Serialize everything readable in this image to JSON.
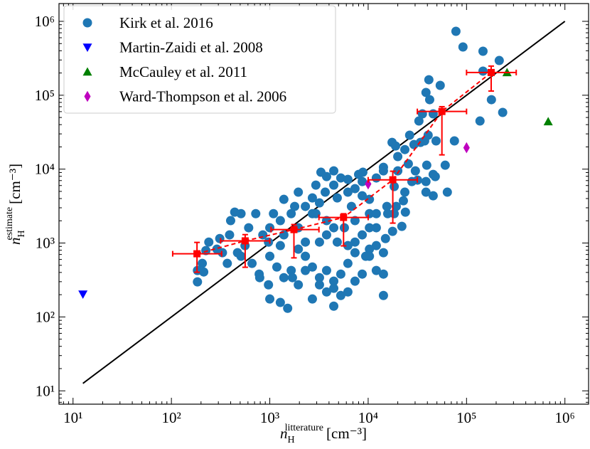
{
  "chart_data": {
    "type": "scatter",
    "xscale": "log",
    "yscale": "log",
    "xlim": [
      7.2,
      1740000
    ],
    "ylim": [
      6.6,
      1740000
    ],
    "xticks": [
      {
        "value": 10,
        "label": "10¹"
      },
      {
        "value": 100,
        "label": "10²"
      },
      {
        "value": 1000,
        "label": "10³"
      },
      {
        "value": 10000,
        "label": "10⁴"
      },
      {
        "value": 100000,
        "label": "10⁵"
      },
      {
        "value": 1000000,
        "label": "10⁶"
      }
    ],
    "yticks": [
      {
        "value": 10,
        "label": "10¹"
      },
      {
        "value": 100,
        "label": "10²"
      },
      {
        "value": 1000,
        "label": "10³"
      },
      {
        "value": 10000,
        "label": "10⁴"
      },
      {
        "value": 100000,
        "label": "10⁵"
      },
      {
        "value": 1000000,
        "label": "10⁶"
      }
    ],
    "xlabel": {
      "symbol": "n",
      "sub": "H",
      "sup": "litterature",
      "unit": "[cm⁻³]"
    },
    "ylabel": {
      "symbol": "n",
      "sub": "H",
      "sup": "estimate",
      "unit": "[cm⁻³]"
    },
    "legend": "upper left",
    "series": [
      {
        "name": "Kirk et al. 2016",
        "color": "#1f77b4",
        "marker": "o",
        "x": [
          78000,
          147000,
          215000,
          92000,
          147000,
          41400,
          137000,
          233000,
          179000,
          54000,
          38700,
          42200,
          45800,
          35600,
          40700,
          49000,
          32800,
          34000,
          29200,
          23600,
          20000,
          26400,
          20000,
          25600,
          30200,
          39400,
          45800,
          60700,
          48100,
          38700,
          45800,
          63800,
          27800,
          23600,
          22800,
          19300,
          15800,
          23900,
          22000,
          17700,
          15000,
          12100,
          12100,
          10300,
          10300,
          8700,
          8000,
          7350,
          8700,
          6760,
          6220,
          5270,
          4470,
          4850,
          3780,
          3660,
          3200,
          2710,
          2710,
          2300,
          1950,
          1790,
          1650,
          1390,
          1280,
          1090,
          1000,
          850,
          720,
          610,
          510,
          440,
          400,
          390,
          310,
          290,
          240,
          206,
          184,
          184,
          213,
          370,
          510,
          660,
          780,
          1000,
          1180,
          1390,
          1650,
          1950,
          2300,
          2710,
          3200,
          3780,
          4470,
          5270,
          6220,
          7350,
          8700,
          9440,
          12100,
          14300,
          4470,
          3780,
          3200,
          2710,
          5270,
          10300,
          14300,
          4470,
          6220,
          1000,
          1280,
          1520,
          970,
          790,
          7350,
          6220,
          3200,
          3780,
          2300,
          1950,
          3780,
          4470,
          7350,
          10300,
          5730,
          1950,
          2940,
          3310,
          4470,
          6220,
          14300,
          17500,
          18400,
          15500,
          12100,
          38700,
          31800,
          37500,
          19000,
          14300,
          4850,
          7350,
          12100,
          18400,
          8830,
          1390,
          1280,
          2300,
          1700,
          14300,
          10300,
          970,
          560,
          470,
          224,
          330,
          75300,
          2940,
          8700
        ],
        "values": [
          733000,
          394000,
          295000,
          450000,
          212000,
          162000,
          44800,
          58500,
          87100,
          136000,
          109000,
          87100,
          56000,
          56000,
          28800,
          24100,
          44800,
          23000,
          21500,
          18400,
          14800,
          28800,
          9480,
          11800,
          9480,
          11300,
          8490,
          11300,
          7940,
          6790,
          4360,
          4880,
          6790,
          4880,
          3730,
          3130,
          2500,
          2620,
          1680,
          1440,
          1150,
          923,
          1610,
          2500,
          3900,
          6790,
          8490,
          5450,
          4360,
          3130,
          4880,
          7600,
          6080,
          4080,
          7940,
          4880,
          3490,
          4080,
          2500,
          3130,
          4880,
          3130,
          2500,
          3900,
          2010,
          2500,
          1610,
          1290,
          2500,
          1610,
          2500,
          2620,
          2010,
          1290,
          1150,
          826,
          1030,
          530,
          425,
          298,
          406,
          530,
          662,
          530,
          380,
          662,
          474,
          340,
          425,
          272,
          662,
          474,
          340,
          425,
          305,
          380,
          530,
          305,
          380,
          662,
          425,
          380,
          244,
          218,
          272,
          175,
          195,
          826,
          740,
          140,
          218,
          175,
          157,
          131,
          272,
          340,
          1030,
          923,
          1030,
          1290,
          1030,
          826,
          2010,
          1610,
          2010,
          1610,
          1610,
          1610,
          6080,
          9080,
          9480,
          7260,
          9480,
          23000,
          5820,
          3130,
          7600,
          4880,
          7110,
          24100,
          20600,
          10600,
          1030,
          740,
          2500,
          2500,
          9080,
          1290,
          923,
          425,
          340,
          195,
          662,
          1030,
          923,
          740,
          791,
          740,
          24100,
          2500,
          1290
        ]
      },
      {
        "name": "Martin-Zaidi et al. 2008",
        "color": "#0000ff",
        "marker": "v",
        "x": [
          12.6
        ],
        "values": [
          203
        ]
      },
      {
        "name": "McCauley et al. 2011",
        "color": "#008000",
        "marker": "^",
        "x": [
          258000,
          676000
        ],
        "values": [
          203000,
          44000
        ]
      },
      {
        "name": "Ward-Thompson et al. 2006",
        "color": "#bf00bf",
        "marker": "d",
        "x": [
          10000,
          100000
        ],
        "values": [
          6300,
          19500
        ]
      }
    ],
    "reference_line": {
      "color": "#000000",
      "x": [
        12.6,
        1000000
      ],
      "values": [
        12.6,
        1000000
      ]
    },
    "binned": {
      "color": "#ff0000",
      "marker": "s",
      "linestyle": "dashed",
      "x": [
        182,
        562,
        1760,
        5620,
        17800,
        56200,
        178000
      ],
      "values": [
        716,
        1070,
        1520,
        2220,
        7170,
        60300,
        203000
      ],
      "x_low": [
        103,
        316,
        1030,
        3160,
        10000,
        31600,
        100000
      ],
      "x_high": [
        324,
        1000,
        3160,
        10000,
        31600,
        100000,
        320000
      ],
      "y_low": [
        403,
        470,
        630,
        915,
        1860,
        15600,
        114000
      ],
      "y_high": [
        1020,
        1300,
        1780,
        2490,
        9370,
        70000,
        248000
      ]
    }
  }
}
